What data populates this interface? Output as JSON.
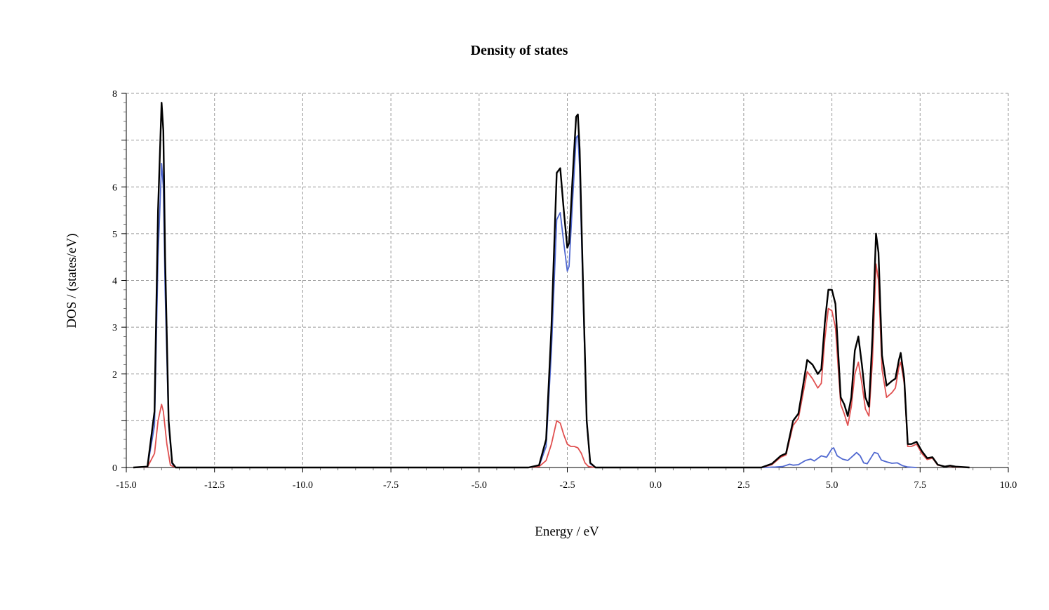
{
  "chart_data": {
    "type": "line",
    "title": "Density of states",
    "xlabel": "Energy / eV",
    "ylabel": "DOS / (states/eV)",
    "xlim": [
      -15.0,
      10.0
    ],
    "ylim": [
      0,
      8
    ],
    "x_ticks": [
      "-15.0",
      "-12.5",
      "-10.0",
      "-7.5",
      "-5.0",
      "-2.5",
      "0.0",
      "2.5",
      "5.0",
      "7.5",
      "10.0"
    ],
    "y_ticks": [
      "0",
      "2",
      "3",
      "4",
      "5",
      "6",
      "8"
    ],
    "grid": true,
    "legend": "none",
    "colors": {
      "total": "#000000",
      "red": "#e05050",
      "blue": "#5068d0"
    },
    "series": [
      {
        "color": "#000000",
        "points": [
          [
            -14.8,
            0
          ],
          [
            -14.4,
            0.02
          ],
          [
            -14.2,
            1.2
          ],
          [
            -14.1,
            5.5
          ],
          [
            -14.0,
            7.8
          ],
          [
            -13.95,
            7.2
          ],
          [
            -13.9,
            4.5
          ],
          [
            -13.8,
            1.0
          ],
          [
            -13.7,
            0.1
          ],
          [
            -13.6,
            0
          ],
          [
            -3.6,
            0
          ],
          [
            -3.3,
            0.05
          ],
          [
            -3.1,
            0.6
          ],
          [
            -2.95,
            3.0
          ],
          [
            -2.8,
            6.3
          ],
          [
            -2.7,
            6.4
          ],
          [
            -2.6,
            5.5
          ],
          [
            -2.5,
            4.7
          ],
          [
            -2.45,
            4.8
          ],
          [
            -2.35,
            6.2
          ],
          [
            -2.25,
            7.5
          ],
          [
            -2.2,
            7.55
          ],
          [
            -2.15,
            6.8
          ],
          [
            -2.05,
            3.8
          ],
          [
            -1.95,
            1.0
          ],
          [
            -1.85,
            0.1
          ],
          [
            -1.7,
            0
          ],
          [
            3.0,
            0
          ],
          [
            3.3,
            0.08
          ],
          [
            3.55,
            0.25
          ],
          [
            3.7,
            0.3
          ],
          [
            3.9,
            1.0
          ],
          [
            4.05,
            1.15
          ],
          [
            4.15,
            1.6
          ],
          [
            4.3,
            2.3
          ],
          [
            4.45,
            2.2
          ],
          [
            4.6,
            2.0
          ],
          [
            4.7,
            2.1
          ],
          [
            4.8,
            3.1
          ],
          [
            4.9,
            3.8
          ],
          [
            5.0,
            3.8
          ],
          [
            5.1,
            3.5
          ],
          [
            5.25,
            1.5
          ],
          [
            5.35,
            1.35
          ],
          [
            5.45,
            1.1
          ],
          [
            5.55,
            1.5
          ],
          [
            5.65,
            2.5
          ],
          [
            5.75,
            2.8
          ],
          [
            5.85,
            2.2
          ],
          [
            5.95,
            1.5
          ],
          [
            6.05,
            1.3
          ],
          [
            6.15,
            2.8
          ],
          [
            6.25,
            5.0
          ],
          [
            6.32,
            4.6
          ],
          [
            6.42,
            2.4
          ],
          [
            6.55,
            1.75
          ],
          [
            6.7,
            1.85
          ],
          [
            6.8,
            1.9
          ],
          [
            6.9,
            2.3
          ],
          [
            6.95,
            2.45
          ],
          [
            7.05,
            1.9
          ],
          [
            7.15,
            0.5
          ],
          [
            7.25,
            0.5
          ],
          [
            7.4,
            0.55
          ],
          [
            7.55,
            0.35
          ],
          [
            7.7,
            0.2
          ],
          [
            7.85,
            0.22
          ],
          [
            8.0,
            0.06
          ],
          [
            8.2,
            0.02
          ],
          [
            8.35,
            0.04
          ],
          [
            8.5,
            0.02
          ],
          [
            8.9,
            0
          ]
        ]
      },
      {
        "color": "#e05050",
        "points": [
          [
            -14.8,
            0
          ],
          [
            -14.4,
            0.01
          ],
          [
            -14.2,
            0.3
          ],
          [
            -14.1,
            1.0
          ],
          [
            -14.0,
            1.35
          ],
          [
            -13.95,
            1.2
          ],
          [
            -13.85,
            0.5
          ],
          [
            -13.75,
            0.05
          ],
          [
            -13.6,
            0
          ],
          [
            -3.6,
            0
          ],
          [
            -3.3,
            0.02
          ],
          [
            -3.1,
            0.15
          ],
          [
            -2.95,
            0.5
          ],
          [
            -2.8,
            1.0
          ],
          [
            -2.7,
            0.95
          ],
          [
            -2.6,
            0.7
          ],
          [
            -2.5,
            0.5
          ],
          [
            -2.4,
            0.45
          ],
          [
            -2.3,
            0.45
          ],
          [
            -2.2,
            0.42
          ],
          [
            -2.1,
            0.3
          ],
          [
            -2.0,
            0.1
          ],
          [
            -1.9,
            0.02
          ],
          [
            -1.7,
            0
          ],
          [
            3.0,
            0
          ],
          [
            3.3,
            0.06
          ],
          [
            3.55,
            0.22
          ],
          [
            3.7,
            0.27
          ],
          [
            3.9,
            0.9
          ],
          [
            4.05,
            1.05
          ],
          [
            4.15,
            1.45
          ],
          [
            4.3,
            2.05
          ],
          [
            4.45,
            1.9
          ],
          [
            4.6,
            1.7
          ],
          [
            4.7,
            1.8
          ],
          [
            4.8,
            2.75
          ],
          [
            4.9,
            3.4
          ],
          [
            5.0,
            3.35
          ],
          [
            5.1,
            3.0
          ],
          [
            5.25,
            1.35
          ],
          [
            5.35,
            1.15
          ],
          [
            5.45,
            0.9
          ],
          [
            5.55,
            1.3
          ],
          [
            5.65,
            2.0
          ],
          [
            5.75,
            2.25
          ],
          [
            5.85,
            1.8
          ],
          [
            5.95,
            1.25
          ],
          [
            6.05,
            1.1
          ],
          [
            6.15,
            2.3
          ],
          [
            6.25,
            4.35
          ],
          [
            6.32,
            4.0
          ],
          [
            6.42,
            2.1
          ],
          [
            6.55,
            1.5
          ],
          [
            6.7,
            1.6
          ],
          [
            6.8,
            1.7
          ],
          [
            6.9,
            2.15
          ],
          [
            6.95,
            2.25
          ],
          [
            7.05,
            1.8
          ],
          [
            7.15,
            0.45
          ],
          [
            7.25,
            0.45
          ],
          [
            7.4,
            0.5
          ],
          [
            7.55,
            0.3
          ],
          [
            7.7,
            0.17
          ],
          [
            7.85,
            0.2
          ],
          [
            8.0,
            0.05
          ],
          [
            8.2,
            0.02
          ],
          [
            8.35,
            0.03
          ],
          [
            8.5,
            0.01
          ],
          [
            8.9,
            0
          ]
        ]
      },
      {
        "color": "#5068d0",
        "points": [
          [
            -14.8,
            0
          ],
          [
            -14.4,
            0.01
          ],
          [
            -14.2,
            0.9
          ],
          [
            -14.1,
            4.5
          ],
          [
            -14.0,
            6.5
          ],
          [
            -13.95,
            6.0
          ],
          [
            -13.9,
            3.8
          ],
          [
            -13.8,
            0.9
          ],
          [
            -13.7,
            0.08
          ],
          [
            -13.6,
            0
          ],
          [
            -3.6,
            0
          ],
          [
            -3.3,
            0.03
          ],
          [
            -3.1,
            0.45
          ],
          [
            -2.95,
            2.5
          ],
          [
            -2.8,
            5.3
          ],
          [
            -2.7,
            5.45
          ],
          [
            -2.6,
            4.8
          ],
          [
            -2.5,
            4.2
          ],
          [
            -2.45,
            4.3
          ],
          [
            -2.35,
            5.7
          ],
          [
            -2.25,
            7.05
          ],
          [
            -2.2,
            7.1
          ],
          [
            -2.15,
            6.4
          ],
          [
            -2.05,
            3.6
          ],
          [
            -1.95,
            0.95
          ],
          [
            -1.85,
            0.08
          ],
          [
            -1.7,
            0
          ],
          [
            3.0,
            0
          ],
          [
            3.4,
            0.01
          ],
          [
            3.6,
            0.02
          ],
          [
            3.8,
            0.07
          ],
          [
            3.9,
            0.05
          ],
          [
            4.05,
            0.06
          ],
          [
            4.25,
            0.15
          ],
          [
            4.4,
            0.18
          ],
          [
            4.5,
            0.14
          ],
          [
            4.7,
            0.25
          ],
          [
            4.85,
            0.22
          ],
          [
            5.0,
            0.4
          ],
          [
            5.05,
            0.42
          ],
          [
            5.15,
            0.25
          ],
          [
            5.3,
            0.18
          ],
          [
            5.45,
            0.15
          ],
          [
            5.6,
            0.25
          ],
          [
            5.7,
            0.32
          ],
          [
            5.8,
            0.25
          ],
          [
            5.9,
            0.1
          ],
          [
            6.0,
            0.08
          ],
          [
            6.1,
            0.2
          ],
          [
            6.2,
            0.32
          ],
          [
            6.3,
            0.3
          ],
          [
            6.4,
            0.16
          ],
          [
            6.55,
            0.12
          ],
          [
            6.7,
            0.09
          ],
          [
            6.85,
            0.1
          ],
          [
            7.0,
            0.04
          ],
          [
            7.15,
            0.01
          ],
          [
            7.4,
            0
          ]
        ]
      }
    ]
  }
}
